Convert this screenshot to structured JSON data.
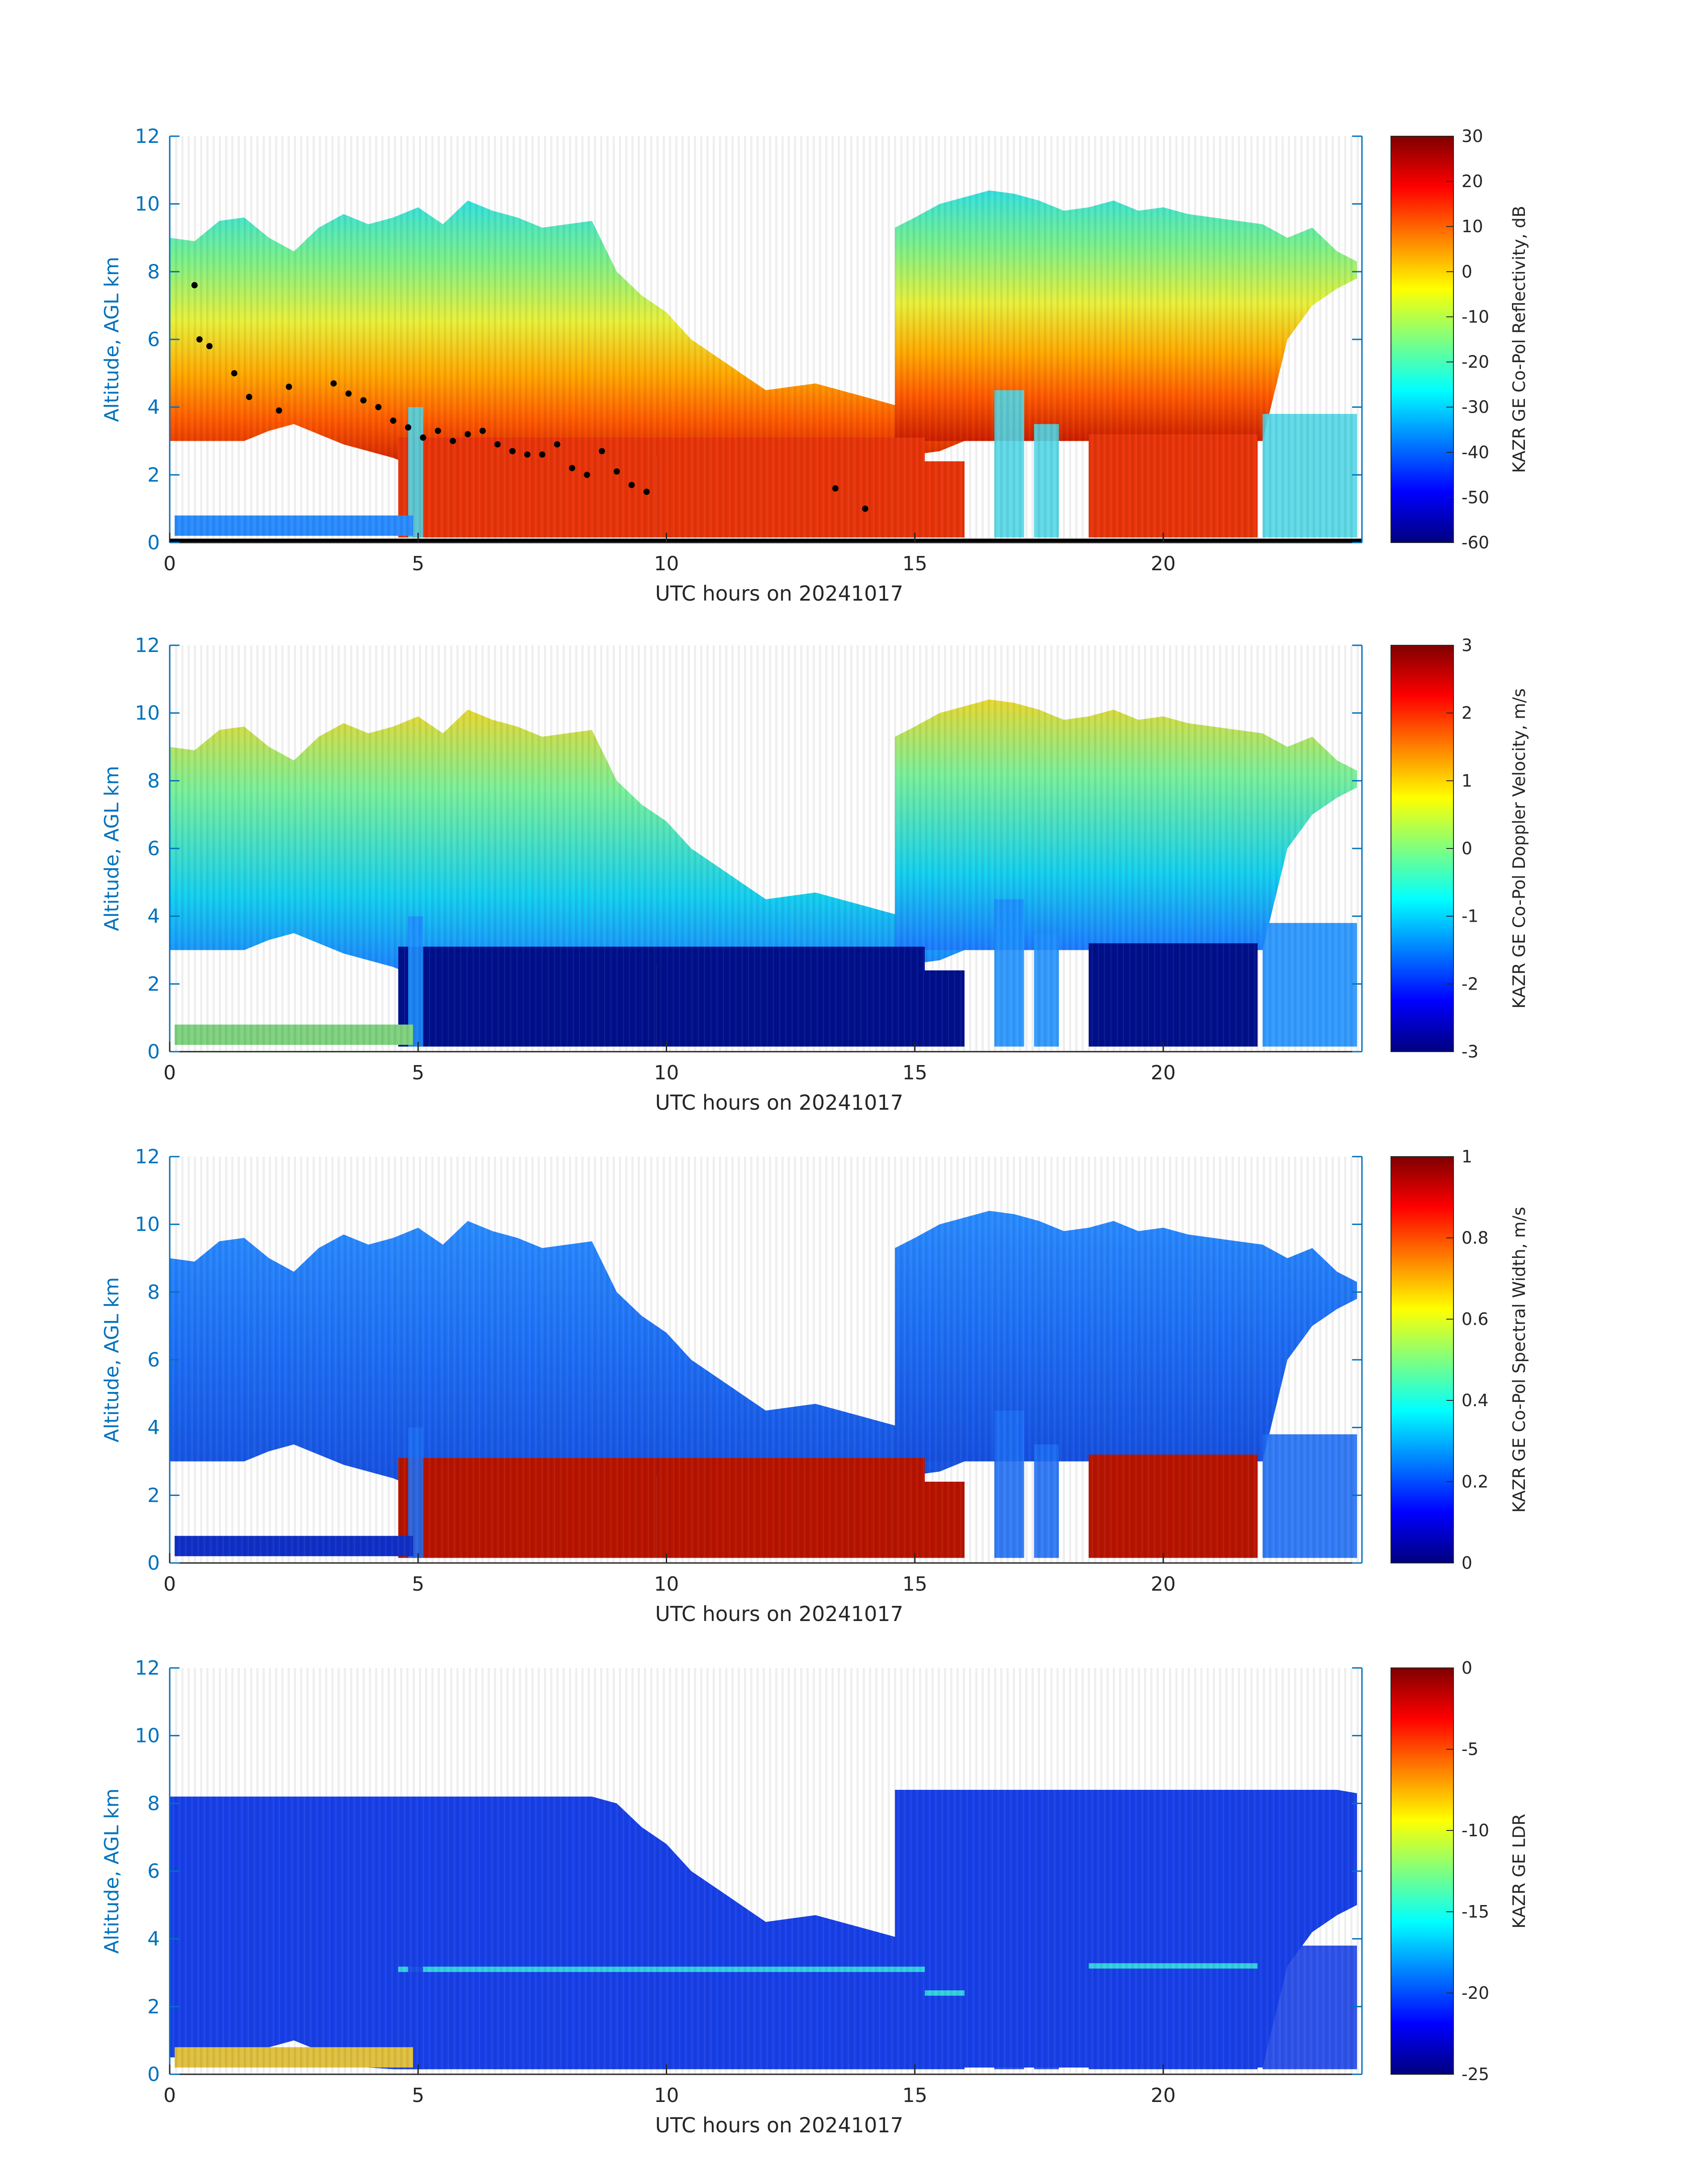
{
  "chart_data": [
    {
      "type": "heatmap",
      "variable": "reflectivity",
      "xlabel": "UTC hours on 20241017",
      "ylabel": "Altitude, AGL km",
      "xlim": [
        0,
        24
      ],
      "ylim": [
        0,
        12
      ],
      "xticks": [
        0,
        5,
        10,
        15,
        20
      ],
      "yticks": [
        0,
        2,
        4,
        6,
        8,
        10,
        12
      ],
      "colorbar": {
        "label": "KAZR GE Co-Pol Reflectivity, dB",
        "range": [
          -60,
          30
        ],
        "ticks": [
          30,
          20,
          10,
          0,
          -10,
          -20,
          -30,
          -40,
          -50,
          -60
        ],
        "colormap": "jet"
      },
      "overlay_points": {
        "color": "#000000",
        "cloud_base_km": [
          [
            0.5,
            7.6
          ],
          [
            0.6,
            6.0
          ],
          [
            0.8,
            5.8
          ],
          [
            1.3,
            5.0
          ],
          [
            1.6,
            4.3
          ],
          [
            2.2,
            3.9
          ],
          [
            2.4,
            4.6
          ],
          [
            3.3,
            4.7
          ],
          [
            3.6,
            4.4
          ],
          [
            3.9,
            4.2
          ],
          [
            4.2,
            4.0
          ],
          [
            4.5,
            3.6
          ],
          [
            4.8,
            3.4
          ],
          [
            5.1,
            3.1
          ],
          [
            5.4,
            3.3
          ],
          [
            5.7,
            3.0
          ],
          [
            6.0,
            3.2
          ],
          [
            6.3,
            3.3
          ],
          [
            6.6,
            2.9
          ],
          [
            6.9,
            2.7
          ],
          [
            7.2,
            2.6
          ],
          [
            7.5,
            2.6
          ],
          [
            7.8,
            2.9
          ],
          [
            8.1,
            2.2
          ],
          [
            8.4,
            2.0
          ],
          [
            8.7,
            2.7
          ],
          [
            9.0,
            2.1
          ],
          [
            9.3,
            1.7
          ],
          [
            9.6,
            1.5
          ],
          [
            13.4,
            1.6
          ],
          [
            14.0,
            1.0
          ]
        ],
        "surface_band_km": 0.05
      }
    },
    {
      "type": "heatmap",
      "variable": "doppler_velocity",
      "xlabel": "UTC hours on 20241017",
      "ylabel": "Altitude, AGL km",
      "xlim": [
        0,
        24
      ],
      "ylim": [
        0,
        12
      ],
      "xticks": [
        0,
        5,
        10,
        15,
        20
      ],
      "yticks": [
        0,
        2,
        4,
        6,
        8,
        10,
        12
      ],
      "colorbar": {
        "label": "KAZR GE Co-Pol Doppler Velocity, m/s",
        "range": [
          -3,
          3
        ],
        "ticks": [
          3,
          2,
          1,
          0,
          -1,
          -2,
          -3
        ],
        "colormap": "jet"
      }
    },
    {
      "type": "heatmap",
      "variable": "spectral_width",
      "xlabel": "UTC hours on 20241017",
      "ylabel": "Altitude, AGL km",
      "xlim": [
        0,
        24
      ],
      "ylim": [
        0,
        12
      ],
      "xticks": [
        0,
        5,
        10,
        15,
        20
      ],
      "yticks": [
        0,
        2,
        4,
        6,
        8,
        10,
        12
      ],
      "colorbar": {
        "label": "KAZR GE Co-Pol Spectral Width, m/s",
        "range": [
          0,
          1
        ],
        "ticks": [
          1,
          0.8,
          0.6,
          0.4,
          0.2,
          0
        ],
        "colormap": "jet"
      }
    },
    {
      "type": "heatmap",
      "variable": "ldr",
      "xlabel": "UTC hours on 20241017",
      "ylabel": "Altitude, AGL km",
      "xlim": [
        0,
        24
      ],
      "ylim": [
        0,
        12
      ],
      "xticks": [
        0,
        5,
        10,
        15,
        20
      ],
      "yticks": [
        0,
        2,
        4,
        6,
        8,
        10,
        12
      ],
      "colorbar": {
        "label": "KAZR GE LDR",
        "range": [
          -25,
          0
        ],
        "ticks": [
          0,
          -5,
          -10,
          -15,
          -20,
          -25
        ],
        "colormap": "jet"
      }
    }
  ],
  "cloud_structure": {
    "upper_cloud": [
      [
        0.0,
        3.0,
        9.0
      ],
      [
        0.5,
        3.0,
        8.9
      ],
      [
        1.0,
        3.0,
        9.5
      ],
      [
        1.5,
        3.0,
        9.6
      ],
      [
        2.0,
        3.3,
        9.0
      ],
      [
        2.5,
        3.5,
        8.6
      ],
      [
        3.0,
        3.2,
        9.3
      ],
      [
        3.5,
        2.9,
        9.7
      ],
      [
        4.0,
        2.7,
        9.4
      ],
      [
        4.5,
        2.5,
        9.6
      ],
      [
        5.0,
        2.2,
        9.9
      ],
      [
        5.5,
        2.5,
        9.4
      ],
      [
        6.0,
        2.7,
        10.1
      ],
      [
        6.5,
        2.5,
        9.8
      ],
      [
        7.0,
        2.4,
        9.6
      ],
      [
        7.5,
        2.3,
        9.3
      ],
      [
        8.0,
        2.3,
        9.4
      ],
      [
        8.5,
        2.4,
        9.5
      ],
      [
        9.0,
        2.4,
        8.0
      ],
      [
        9.5,
        2.5,
        7.3
      ],
      [
        10.0,
        2.6,
        6.8
      ],
      [
        10.5,
        2.7,
        6.0
      ],
      [
        11.0,
        2.8,
        5.5
      ],
      [
        11.5,
        2.7,
        5.0
      ],
      [
        12.0,
        2.6,
        4.5
      ],
      [
        12.5,
        2.5,
        4.6
      ],
      [
        13.0,
        2.5,
        4.7
      ],
      [
        13.5,
        2.6,
        4.5
      ],
      [
        14.0,
        2.6,
        4.3
      ],
      [
        14.5,
        2.6,
        4.1
      ],
      [
        15.0,
        2.6,
        3.9
      ],
      [
        15.5,
        2.7,
        3.9
      ],
      [
        16.0,
        3.0,
        3.8
      ]
    ],
    "second_cloud": [
      [
        14.6,
        3.0,
        9.3
      ],
      [
        15.0,
        3.0,
        9.6
      ],
      [
        15.5,
        3.0,
        10.0
      ],
      [
        16.0,
        3.0,
        10.2
      ],
      [
        16.5,
        3.0,
        10.4
      ],
      [
        17.0,
        3.0,
        10.3
      ],
      [
        17.5,
        3.0,
        10.1
      ],
      [
        18.0,
        3.0,
        9.8
      ],
      [
        18.5,
        3.0,
        9.9
      ],
      [
        19.0,
        3.0,
        10.1
      ],
      [
        19.5,
        3.0,
        9.8
      ],
      [
        20.0,
        3.0,
        9.9
      ],
      [
        20.5,
        3.0,
        9.7
      ],
      [
        21.0,
        3.0,
        9.6
      ],
      [
        21.5,
        3.0,
        9.5
      ],
      [
        22.0,
        3.0,
        9.4
      ],
      [
        22.5,
        6.0,
        9.0
      ],
      [
        23.0,
        7.0,
        9.3
      ],
      [
        23.5,
        7.5,
        8.6
      ],
      [
        23.9,
        7.8,
        8.3
      ]
    ],
    "precip_shafts": [
      [
        4.6,
        9.8,
        3.1
      ],
      [
        9.8,
        15.2,
        3.1
      ],
      [
        15.2,
        16.0,
        2.4
      ],
      [
        18.5,
        21.9,
        3.2
      ]
    ],
    "lower_cloud": [
      [
        4.8,
        5.1,
        4.0
      ],
      [
        16.6,
        17.2,
        4.5
      ],
      [
        17.4,
        17.9,
        3.5
      ],
      [
        22.0,
        23.9,
        3.8
      ]
    ],
    "boundary_layer": [
      [
        0.1,
        4.9,
        0.2,
        0.8
      ]
    ]
  }
}
